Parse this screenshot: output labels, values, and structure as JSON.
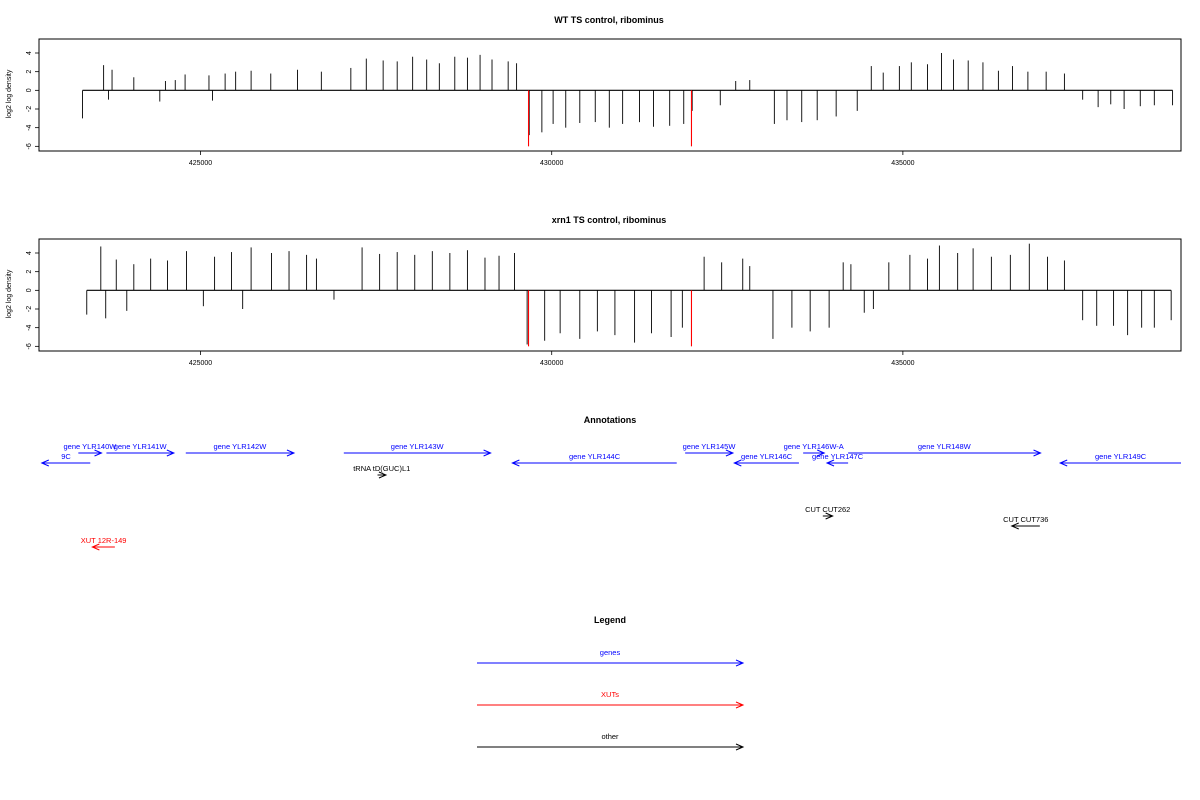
{
  "colors": {
    "genes": "#0000ff",
    "xuts": "#ff0000",
    "other": "#000000",
    "bars": "#000000",
    "highlight": "#ff0000"
  },
  "chart_data": [
    {
      "type": "bar",
      "title": "WT TS control, ribominus",
      "ylabel": "log2 log density",
      "ylim": [
        -6.5,
        5.5
      ],
      "xlim": [
        422700,
        438960
      ],
      "yticks": [
        "-6",
        "-4",
        "-2",
        "0",
        "2",
        "4"
      ],
      "xticks": [
        "425000",
        "430000",
        "435000"
      ],
      "xtick_values": [
        425000,
        430000,
        435000
      ],
      "grid": false,
      "bars": [
        [
          423320,
          -3.0
        ],
        [
          423620,
          2.7
        ],
        [
          423690,
          -1.0
        ],
        [
          423740,
          2.2
        ],
        [
          424050,
          1.4
        ],
        [
          424420,
          -1.2
        ],
        [
          424500,
          1.0
        ],
        [
          424640,
          1.1
        ],
        [
          424780,
          1.7
        ],
        [
          425120,
          1.6
        ],
        [
          425170,
          -1.1
        ],
        [
          425350,
          1.8
        ],
        [
          425500,
          2.0
        ],
        [
          425720,
          2.1
        ],
        [
          426000,
          1.8
        ],
        [
          426380,
          2.2
        ],
        [
          426720,
          2.0
        ],
        [
          427140,
          2.4
        ],
        [
          427360,
          3.4
        ],
        [
          427600,
          3.2
        ],
        [
          427800,
          3.1
        ],
        [
          428020,
          3.6
        ],
        [
          428220,
          3.3
        ],
        [
          428400,
          2.9
        ],
        [
          428620,
          3.6
        ],
        [
          428800,
          3.5
        ],
        [
          428980,
          3.8
        ],
        [
          429150,
          3.3
        ],
        [
          429380,
          3.1
        ],
        [
          429500,
          2.9
        ],
        [
          429680,
          -4.8
        ],
        [
          429860,
          -4.5
        ],
        [
          430020,
          -3.6
        ],
        [
          430200,
          -4.0
        ],
        [
          430400,
          -3.5
        ],
        [
          430620,
          -3.4
        ],
        [
          430820,
          -4.0
        ],
        [
          431010,
          -3.6
        ],
        [
          431250,
          -3.4
        ],
        [
          431450,
          -3.9
        ],
        [
          431680,
          -3.8
        ],
        [
          431880,
          -3.6
        ],
        [
          432000,
          -2.2
        ],
        [
          432400,
          -1.6
        ],
        [
          432620,
          1.0
        ],
        [
          432820,
          1.1
        ],
        [
          433170,
          -3.6
        ],
        [
          433350,
          -3.2
        ],
        [
          433560,
          -3.4
        ],
        [
          433780,
          -3.2
        ],
        [
          434050,
          -2.8
        ],
        [
          434350,
          -2.2
        ],
        [
          434550,
          2.6
        ],
        [
          434720,
          1.9
        ],
        [
          434950,
          2.6
        ],
        [
          435120,
          3.0
        ],
        [
          435350,
          2.8
        ],
        [
          435550,
          4.0
        ],
        [
          435720,
          3.3
        ],
        [
          435930,
          3.2
        ],
        [
          436140,
          3.0
        ],
        [
          436360,
          2.1
        ],
        [
          436560,
          2.6
        ],
        [
          436780,
          2.0
        ],
        [
          437040,
          2.0
        ],
        [
          437300,
          1.8
        ],
        [
          437560,
          -1.0
        ],
        [
          437780,
          -1.8
        ],
        [
          437960,
          -1.5
        ],
        [
          438150,
          -2.0
        ],
        [
          438380,
          -1.7
        ],
        [
          438580,
          -1.6
        ],
        [
          438840,
          -1.6
        ]
      ],
      "highlights": [
        429670,
        431990
      ]
    },
    {
      "type": "bar",
      "title": "xrn1 TS control, ribominus",
      "ylabel": "log2 log density",
      "ylim": [
        -6.5,
        5.5
      ],
      "xlim": [
        422700,
        438960
      ],
      "yticks": [
        "-6",
        "-4",
        "-2",
        "0",
        "2",
        "4"
      ],
      "xticks": [
        "425000",
        "430000",
        "435000"
      ],
      "xtick_values": [
        425000,
        430000,
        435000
      ],
      "grid": false,
      "bars": [
        [
          423380,
          -2.6
        ],
        [
          423580,
          4.7
        ],
        [
          423650,
          -3.0
        ],
        [
          423800,
          3.3
        ],
        [
          423950,
          -2.2
        ],
        [
          424050,
          2.8
        ],
        [
          424290,
          3.4
        ],
        [
          424530,
          3.2
        ],
        [
          424800,
          4.2
        ],
        [
          425040,
          -1.7
        ],
        [
          425200,
          3.6
        ],
        [
          425440,
          4.1
        ],
        [
          425600,
          -2.0
        ],
        [
          425720,
          4.6
        ],
        [
          426010,
          4.0
        ],
        [
          426260,
          4.2
        ],
        [
          426510,
          3.8
        ],
        [
          426650,
          3.4
        ],
        [
          426900,
          -1.0
        ],
        [
          427300,
          4.6
        ],
        [
          427550,
          3.9
        ],
        [
          427800,
          4.1
        ],
        [
          428050,
          3.8
        ],
        [
          428300,
          4.2
        ],
        [
          428550,
          4.0
        ],
        [
          428800,
          4.3
        ],
        [
          429050,
          3.5
        ],
        [
          429250,
          3.7
        ],
        [
          429470,
          4.0
        ],
        [
          429650,
          -5.8
        ],
        [
          429900,
          -5.4
        ],
        [
          430120,
          -4.6
        ],
        [
          430400,
          -5.2
        ],
        [
          430650,
          -4.4
        ],
        [
          430900,
          -4.8
        ],
        [
          431180,
          -5.6
        ],
        [
          431420,
          -4.6
        ],
        [
          431700,
          -5.0
        ],
        [
          431860,
          -4.0
        ],
        [
          432170,
          3.6
        ],
        [
          432420,
          3.0
        ],
        [
          432720,
          3.4
        ],
        [
          432820,
          2.6
        ],
        [
          433150,
          -5.2
        ],
        [
          433420,
          -4.0
        ],
        [
          433680,
          -4.4
        ],
        [
          433950,
          -4.0
        ],
        [
          434150,
          3.0
        ],
        [
          434260,
          2.8
        ],
        [
          434450,
          -2.4
        ],
        [
          434580,
          -2.0
        ],
        [
          434800,
          3.0
        ],
        [
          435100,
          3.8
        ],
        [
          435350,
          3.4
        ],
        [
          435520,
          4.8
        ],
        [
          435780,
          4.0
        ],
        [
          436000,
          4.5
        ],
        [
          436260,
          3.6
        ],
        [
          436530,
          3.8
        ],
        [
          436800,
          5.0
        ],
        [
          437060,
          3.6
        ],
        [
          437300,
          3.2
        ],
        [
          437560,
          -3.2
        ],
        [
          437760,
          -3.8
        ],
        [
          438000,
          -3.8
        ],
        [
          438200,
          -4.8
        ],
        [
          438400,
          -4.0
        ],
        [
          438580,
          -4.0
        ],
        [
          438820,
          -3.2
        ]
      ],
      "highlights": [
        429670,
        431990
      ]
    }
  ],
  "annotations": {
    "title": "Annotations",
    "features": [
      {
        "label": "9C",
        "kind": "genes",
        "x1": 422740,
        "x2": 423430,
        "dir": "left",
        "row": 1
      },
      {
        "label": "gene YLR140W",
        "kind": "genes",
        "x1": 423260,
        "x2": 423590,
        "dir": "right",
        "row": 0
      },
      {
        "label": "gene YLR141W",
        "kind": "genes",
        "x1": 423660,
        "x2": 424620,
        "dir": "right",
        "row": 0
      },
      {
        "label": "gene YLR142W",
        "kind": "genes",
        "x1": 424790,
        "x2": 426330,
        "dir": "right",
        "row": 0
      },
      {
        "label": "gene YLR143W",
        "kind": "genes",
        "x1": 427040,
        "x2": 429130,
        "dir": "right",
        "row": 0
      },
      {
        "label": "gene YLR144C",
        "kind": "genes",
        "x1": 429440,
        "x2": 431780,
        "dir": "left",
        "row": 1
      },
      {
        "label": "gene YLR145W",
        "kind": "genes",
        "x1": 431900,
        "x2": 432580,
        "dir": "right",
        "row": 0
      },
      {
        "label": "gene YLR146C",
        "kind": "genes",
        "x1": 432600,
        "x2": 433520,
        "dir": "left",
        "row": 1
      },
      {
        "label": "gene YLR146W-A",
        "kind": "genes",
        "x1": 433580,
        "x2": 433880,
        "dir": "right",
        "row": 0
      },
      {
        "label": "gene YLR147C",
        "kind": "genes",
        "x1": 433920,
        "x2": 434220,
        "dir": "left",
        "row": 1
      },
      {
        "label": "gene YLR148W",
        "kind": "genes",
        "x1": 434220,
        "x2": 436960,
        "dir": "right",
        "row": 0
      },
      {
        "label": "gene YLR149C",
        "kind": "genes",
        "x1": 437240,
        "x2": 438960,
        "dir": "left",
        "row": 1
      },
      {
        "label": "tRNA tD(GUC)L1",
        "kind": "other",
        "x1": 427520,
        "x2": 427640,
        "dir": "right",
        "row": 2
      },
      {
        "label": "CUT CUT262",
        "kind": "other",
        "x1": 433860,
        "x2": 434000,
        "dir": "right",
        "row": 3
      },
      {
        "label": "CUT CUT736",
        "kind": "other",
        "x1": 436550,
        "x2": 436950,
        "dir": "left",
        "row": 4
      },
      {
        "label": "XUT 12R-149",
        "kind": "xuts",
        "x1": 423460,
        "x2": 423780,
        "dir": "left",
        "row": 5
      }
    ]
  },
  "legend": {
    "title": "Legend",
    "items": [
      {
        "label": "genes",
        "kind": "genes"
      },
      {
        "label": "XUTs",
        "kind": "xuts"
      },
      {
        "label": "other",
        "kind": "other"
      }
    ]
  }
}
